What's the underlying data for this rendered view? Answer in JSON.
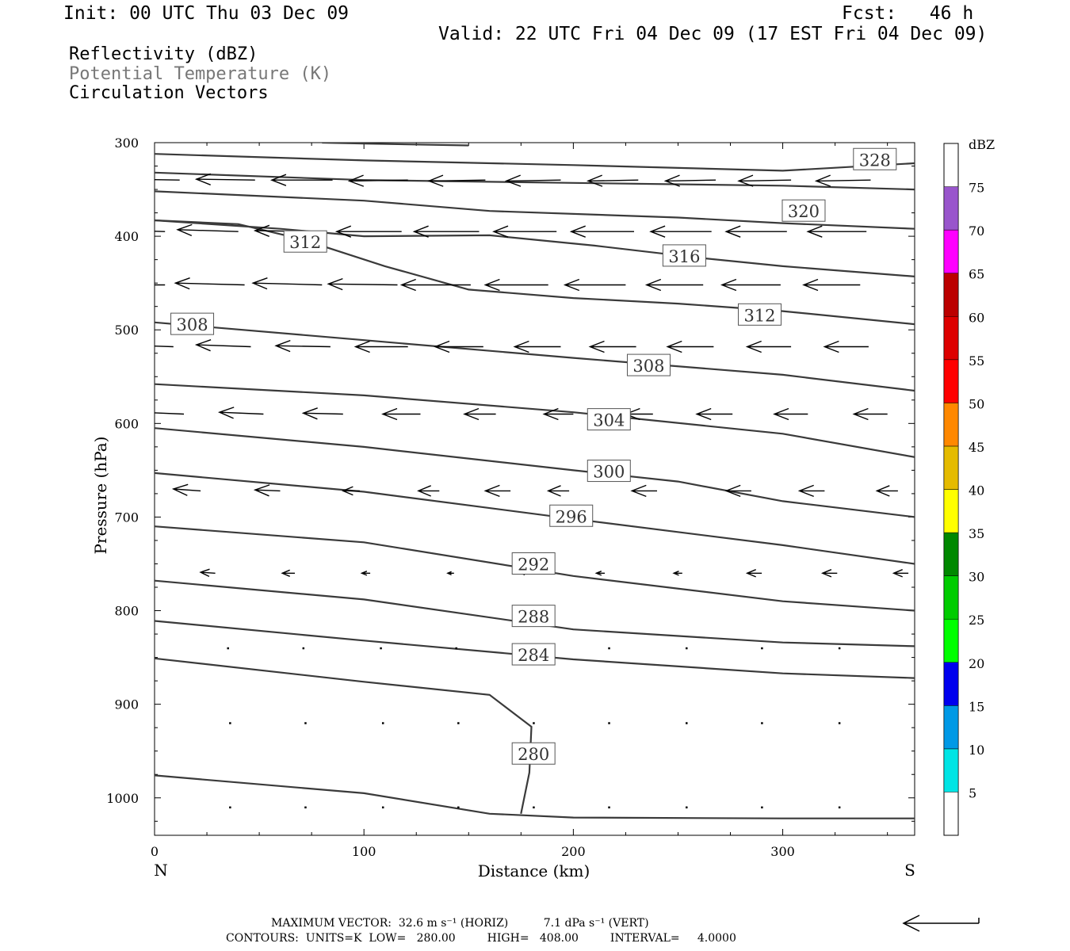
{
  "header": {
    "init": "Init: 00 UTC Thu 03 Dec 09",
    "fcst": "Fcst:   46 h",
    "valid": "Valid: 22 UTC Fri 04 Dec 09 (17 EST Fri 04 Dec 09)"
  },
  "legend": {
    "line1": "Reflectivity (dBZ)",
    "line2": "Potential Temperature (K)",
    "line3": "Circulation Vectors",
    "line2_color": "#777777"
  },
  "footer": {
    "line1": "MAXIMUM VECTOR:  32.6 m s⁻¹ (HORIZ)          7.1 dPa s⁻¹ (VERT)",
    "line2": "CONTOURS:  UNITS=K  LOW=   280.00         HIGH=   408.00         INTERVAL=     4.0000"
  },
  "colorbar": {
    "unit_label": "dBZ",
    "levels": [
      5,
      10,
      15,
      20,
      25,
      30,
      35,
      40,
      45,
      50,
      55,
      60,
      65,
      70,
      75
    ],
    "colors": [
      "#00e5e5",
      "#0099e6",
      "#0000ee",
      "#00ff00",
      "#00cc00",
      "#008800",
      "#ffff00",
      "#e5bb00",
      "#ff8800",
      "#ff0000",
      "#dd0000",
      "#bb0000",
      "#ff00ff",
      "#9955cc"
    ]
  },
  "chart_data": {
    "type": "line",
    "title": "",
    "xlabel": "Distance (km)",
    "ylabel": "Pressure (hPa)",
    "xlim": [
      0,
      363
    ],
    "ylim": [
      1040,
      300
    ],
    "x_ticks": [
      0,
      100,
      200,
      300
    ],
    "y_ticks": [
      300,
      400,
      500,
      600,
      700,
      800,
      900,
      1000
    ],
    "x_end_labels": {
      "left": "N",
      "right": "S"
    },
    "grid": false,
    "series": [
      {
        "label": "328",
        "label_pos": [
          344,
          318
        ],
        "points": [
          [
            0,
            312
          ],
          [
            100,
            319
          ],
          [
            200,
            324
          ],
          [
            300,
            330
          ],
          [
            363,
            322
          ]
        ]
      },
      {
        "label": "",
        "points": [
          [
            80,
            300
          ],
          [
            100,
            301
          ],
          [
            150,
            303
          ]
        ]
      },
      {
        "label": "",
        "points": [
          [
            0,
            332
          ],
          [
            100,
            340
          ],
          [
            200,
            343
          ],
          [
            300,
            346
          ],
          [
            363,
            350
          ]
        ]
      },
      {
        "label": "320",
        "points": [
          [
            0,
            352
          ],
          [
            100,
            362
          ],
          [
            160,
            373
          ],
          [
            250,
            380
          ],
          [
            300,
            386
          ],
          [
            363,
            392
          ]
        ]
      },
      {
        "label": "316",
        "points": [
          [
            0,
            383
          ],
          [
            60,
            392
          ],
          [
            100,
            400
          ],
          [
            160,
            399
          ],
          [
            210,
            410
          ],
          [
            260,
            423
          ],
          [
            300,
            432
          ],
          [
            363,
            443
          ]
        ]
      },
      {
        "label": "312",
        "points": [
          [
            0,
            383
          ],
          [
            40,
            387
          ],
          [
            70,
            403
          ],
          [
            110,
            432
          ],
          [
            150,
            457
          ],
          [
            200,
            466
          ],
          [
            250,
            472
          ],
          [
            300,
            480
          ],
          [
            363,
            494
          ]
        ]
      },
      {
        "label": "308",
        "points": [
          [
            0,
            492
          ],
          [
            100,
            511
          ],
          [
            200,
            530
          ],
          [
            300,
            548
          ],
          [
            363,
            565
          ]
        ]
      },
      {
        "label": "304",
        "points": [
          [
            0,
            558
          ],
          [
            100,
            570
          ],
          [
            200,
            588
          ],
          [
            300,
            611
          ],
          [
            363,
            636
          ]
        ]
      },
      {
        "label": "300",
        "points": [
          [
            0,
            605
          ],
          [
            100,
            625
          ],
          [
            200,
            650
          ],
          [
            250,
            662
          ],
          [
            300,
            683
          ],
          [
            363,
            700
          ]
        ]
      },
      {
        "label": "296",
        "points": [
          [
            0,
            653
          ],
          [
            100,
            673
          ],
          [
            200,
            702
          ],
          [
            300,
            730
          ],
          [
            363,
            750
          ]
        ]
      },
      {
        "label": "292",
        "points": [
          [
            0,
            710
          ],
          [
            100,
            727
          ],
          [
            200,
            763
          ],
          [
            300,
            790
          ],
          [
            363,
            800
          ]
        ]
      },
      {
        "label": "288",
        "points": [
          [
            0,
            768
          ],
          [
            100,
            788
          ],
          [
            200,
            820
          ],
          [
            300,
            834
          ],
          [
            363,
            838
          ]
        ]
      },
      {
        "label": "284",
        "points": [
          [
            0,
            811
          ],
          [
            100,
            832
          ],
          [
            200,
            852
          ],
          [
            300,
            867
          ],
          [
            363,
            872
          ]
        ]
      },
      {
        "label": "280",
        "points": [
          [
            0,
            851
          ],
          [
            100,
            876
          ],
          [
            160,
            890
          ],
          [
            180,
            924
          ],
          [
            179,
            973
          ],
          [
            175,
            1017
          ]
        ]
      },
      {
        "label": "",
        "points": [
          [
            0,
            976
          ],
          [
            100,
            995
          ],
          [
            160,
            1017
          ],
          [
            200,
            1021
          ],
          [
            300,
            1022
          ],
          [
            363,
            1022
          ]
        ]
      }
    ],
    "contour_labels": [
      {
        "text": "328",
        "x": 344,
        "y": 318
      },
      {
        "text": "320",
        "x": 310,
        "y": 373
      },
      {
        "text": "316",
        "x": 253,
        "y": 421
      },
      {
        "text": "312",
        "x": 72,
        "y": 406
      },
      {
        "text": "312",
        "x": 289,
        "y": 484
      },
      {
        "text": "308",
        "x": 18,
        "y": 494
      },
      {
        "text": "308",
        "x": 236,
        "y": 538
      },
      {
        "text": "304",
        "x": 217,
        "y": 596
      },
      {
        "text": "300",
        "x": 217,
        "y": 651
      },
      {
        "text": "296",
        "x": 199,
        "y": 699
      },
      {
        "text": "292",
        "x": 181,
        "y": 750
      },
      {
        "text": "288",
        "x": 181,
        "y": 806
      },
      {
        "text": "284",
        "x": 181,
        "y": 847
      },
      {
        "text": "280",
        "x": 181,
        "y": 953
      }
    ],
    "vector_rows": [
      {
        "p": 340,
        "x": [
          12,
          48,
          85,
          121,
          158,
          194,
          231,
          268,
          304,
          342
        ],
        "dx": [
          -27,
          -28,
          -29,
          -28,
          -27,
          -26,
          -24,
          -24,
          -25,
          -26
        ],
        "dp": [
          -1,
          -1,
          0,
          1,
          1,
          1,
          1,
          1,
          1,
          1
        ]
      },
      {
        "p": 395,
        "x": [
          5,
          40,
          78,
          118,
          155,
          192,
          229,
          266,
          302,
          340
        ],
        "dx": [
          -28,
          -29,
          -30,
          -31,
          -31,
          -30,
          -30,
          -29,
          -29,
          -28
        ],
        "dp": [
          -2,
          -2,
          -1,
          0,
          0,
          0,
          0,
          0,
          0,
          0
        ]
      },
      {
        "p": 452,
        "x": [
          5,
          43,
          80,
          116,
          151,
          188,
          225,
          262,
          299,
          337
        ],
        "dx": [
          -32,
          -33,
          -33,
          -33,
          -33,
          -30,
          -29,
          -27,
          -28,
          -27
        ],
        "dp": [
          0,
          -2,
          -2,
          -1,
          0,
          0,
          0,
          0,
          0,
          0
        ]
      },
      {
        "p": 518,
        "x": [
          9,
          46,
          84,
          121,
          157,
          194,
          230,
          267,
          304,
          341
        ],
        "dx": [
          -27,
          -26,
          -26,
          -25,
          -23,
          -22,
          -22,
          -22,
          -21,
          -21
        ],
        "dp": [
          -2,
          -2,
          -1,
          0,
          0,
          0,
          0,
          0,
          0,
          0
        ]
      },
      {
        "p": 590,
        "x": [
          14,
          52,
          90,
          127,
          163,
          200,
          238,
          276,
          312,
          350
        ],
        "dx": [
          -21,
          -21,
          -19,
          -18,
          -15,
          -14,
          -13,
          -17,
          -16,
          -16
        ],
        "dp": [
          -2,
          -2,
          -1,
          0,
          0,
          0,
          0,
          0,
          0,
          0
        ]
      },
      {
        "p": 672,
        "x": [
          22,
          60,
          98,
          136,
          170,
          198,
          240,
          285,
          320,
          355
        ],
        "dx": [
          -13,
          -12,
          -8,
          -10,
          -12,
          -10,
          -12,
          -12,
          -12,
          -10
        ],
        "dp": [
          -2,
          -1,
          0,
          0,
          0,
          0,
          0,
          0,
          0,
          0
        ]
      },
      {
        "p": 760,
        "x": [
          29,
          67,
          103,
          143,
          178,
          215,
          252,
          290,
          326,
          360
        ],
        "dx": [
          -7,
          -6,
          -4,
          -3,
          -3,
          -4,
          -4,
          -7,
          -7,
          -7
        ],
        "dp": [
          -1,
          0,
          0,
          0,
          0,
          0,
          0,
          0,
          0,
          0
        ]
      },
      {
        "p": 840,
        "x": [
          35,
          71,
          108,
          144,
          181,
          217,
          254,
          290,
          327
        ],
        "dx": [
          0,
          0,
          0,
          0,
          0,
          0,
          0,
          0,
          0
        ],
        "dp": [
          0,
          0,
          0,
          0,
          0,
          0,
          0,
          0,
          0
        ]
      },
      {
        "p": 920,
        "x": [
          36,
          72,
          109,
          145,
          181,
          217,
          254,
          290,
          327
        ],
        "dx": [
          0,
          0,
          0,
          0,
          0,
          0,
          0,
          0,
          0
        ],
        "dp": [
          0,
          0,
          0,
          0,
          0,
          0,
          0,
          0,
          0
        ]
      },
      {
        "p": 1010,
        "x": [
          36,
          72,
          109,
          145,
          181,
          217,
          254,
          290,
          327
        ],
        "dx": [
          0,
          0,
          0,
          0,
          0,
          0,
          0,
          0,
          0
        ],
        "dp": [
          0,
          0,
          0,
          0,
          0,
          0,
          0,
          0,
          0
        ]
      }
    ]
  }
}
